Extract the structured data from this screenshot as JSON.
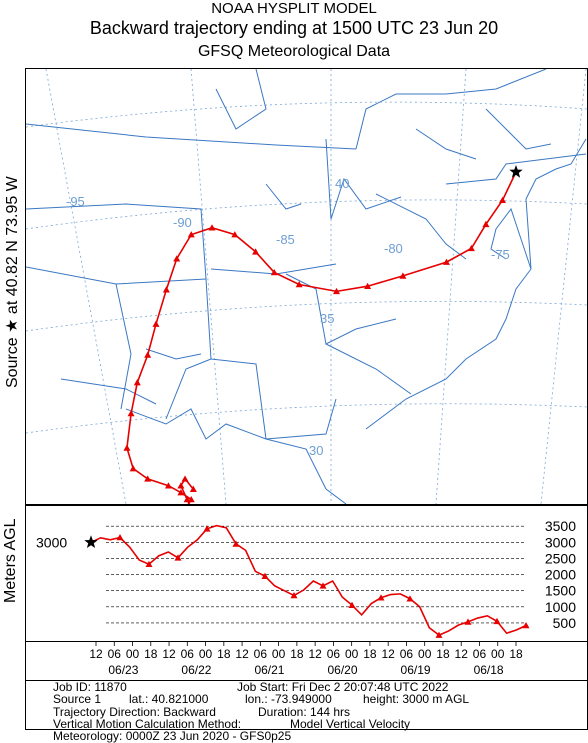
{
  "title": {
    "line1": "NOAA HYSPLIT MODEL",
    "line2": "Backward trajectory ending at 1500 UTC 23 Jun 20",
    "line3": "GFSQ Meteorological Data"
  },
  "source_label": "Source ★  at    40.82 N    73.95 W",
  "agl_label": "Meters AGL",
  "map": {
    "lon_labels": [
      "-95",
      "-90",
      "-85",
      "-80",
      "-75"
    ],
    "lat_labels": [
      "40",
      "35",
      "30"
    ],
    "colors": {
      "land": "#fefefe",
      "border": "#3a78c3",
      "grid": "#7aa6d6",
      "label": "#6f9fd2",
      "trajectory": "#e60000"
    }
  },
  "chart_data": {
    "type": "line",
    "title": "Backward trajectory ending at 1500 UTC 23 Jun 20",
    "series": [
      {
        "name": "",
        "track": [
          [
            -73.95,
            40.82
          ],
          [
            -74.6,
            40.0
          ],
          [
            -75.4,
            39.3
          ],
          [
            -76.1,
            38.6
          ],
          [
            -77.3,
            38.2
          ],
          [
            -79.4,
            37.8
          ],
          [
            -81.1,
            37.5
          ],
          [
            -82.6,
            37.35
          ],
          [
            -84.4,
            37.55
          ],
          [
            -85.6,
            37.9
          ],
          [
            -86.5,
            38.5
          ],
          [
            -87.5,
            39.0
          ],
          [
            -88.6,
            39.2
          ],
          [
            -89.6,
            39.0
          ],
          [
            -90.3,
            38.3
          ],
          [
            -90.8,
            37.4
          ],
          [
            -91.3,
            36.4
          ],
          [
            -91.7,
            35.5
          ],
          [
            -92.2,
            34.7
          ],
          [
            -92.5,
            33.8
          ],
          [
            -92.7,
            32.8
          ],
          [
            -92.4,
            32.2
          ],
          [
            -91.7,
            31.9
          ],
          [
            -90.7,
            31.7
          ],
          [
            -90.1,
            31.5
          ],
          [
            -89.6,
            31.3
          ],
          [
            -89.9,
            31.0
          ],
          [
            -89.5,
            30.9
          ],
          [
            -89.8,
            31.3
          ],
          [
            -90.1,
            31.7
          ],
          [
            -89.9,
            31.9
          ],
          [
            -89.5,
            31.6
          ]
        ],
        "height_m": [
          3000,
          3140,
          3080,
          3150,
          2850,
          2450,
          2320,
          2580,
          2700,
          2520,
          2850,
          3080,
          3420,
          3520,
          3450,
          2950,
          2750,
          2100,
          1950,
          1650,
          1500,
          1350,
          1520,
          1800,
          1650,
          1800,
          1300,
          1050,
          750,
          1100,
          1280,
          1380,
          1400,
          1250,
          1000,
          350,
          120,
          250,
          430,
          530,
          650,
          720,
          550,
          180,
          280,
          420
        ]
      }
    ],
    "source": {
      "lat": 40.82,
      "lon": -73.95,
      "height_m": 3000
    },
    "y_ticks": [
      3500,
      3000,
      2500,
      2000,
      1500,
      1000,
      500
    ],
    "ylim": [
      0,
      3800
    ],
    "source_height_label": "3000",
    "time_hour_labels": [
      "12",
      "06",
      "00",
      "18",
      "12",
      "06",
      "00",
      "18",
      "12",
      "06",
      "00",
      "18",
      "12",
      "06",
      "00",
      "18",
      "12",
      "06",
      "00",
      "18",
      "12",
      "06",
      "00",
      "18"
    ],
    "date_labels": [
      "06/23",
      "06/22",
      "06/21",
      "06/20",
      "06/19",
      "06/18"
    ],
    "grid": true
  },
  "info": {
    "job_id": "Job ID: 11870",
    "job_start": "Job Start: Fri Dec  2 20:07:48 UTC 2022",
    "source": "Source 1",
    "lat": "lat.: 40.821000",
    "lon": "lon.: -73.949000",
    "height": "height: 3000 m AGL",
    "direction": "Trajectory Direction: Backward",
    "duration": "Duration: 144 hrs",
    "vertical_method": "Vertical Motion Calculation Method:",
    "vertical_value": "Model Vertical Velocity",
    "meteorology": "Meteorology: 0000Z 23 Jun 2020 - GFS0p25"
  }
}
